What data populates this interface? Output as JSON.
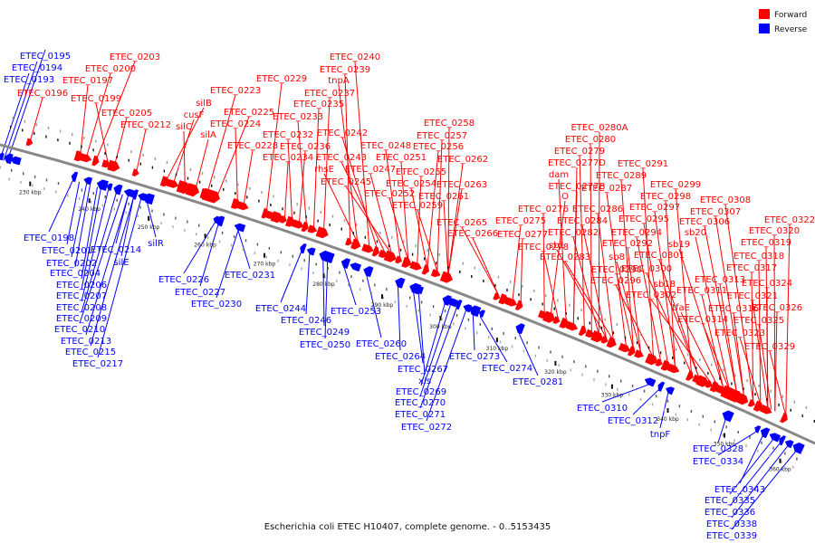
{
  "legend": [
    {
      "label": "Forward",
      "color": "#ff0000"
    },
    {
      "label": "Reverse",
      "color": "#0000ff"
    }
  ],
  "caption": "Escherichia coli ETEC H10407, complete genome. - 0..5153435",
  "colors": {
    "forward": "#ff0000",
    "reverse": "#0000ff",
    "backbone": "#888888"
  },
  "scale_ticks": [
    "230 kbp",
    "240 kbp",
    "250 kbp",
    "260 kbp",
    "270 kbp",
    "280 kbp",
    "290 kbp",
    "300 kbp",
    "310 kbp",
    "320 kbp",
    "330 kbp",
    "340 kbp",
    "350 kbp",
    "360 kbp"
  ],
  "forward_labels": [
    "ETEC_0203",
    "ETEC_0200",
    "ETEC_0197",
    "ETEC_0199",
    "ETEC_0196",
    "ETEC_0205",
    "ETEC_0212",
    "silB",
    "cusF",
    "silC",
    "silA",
    "ETEC_0223",
    "ETEC_0225",
    "ETEC_0224",
    "ETEC_0228",
    "ETEC_0229",
    "ETEC_0240",
    "ETEC_0239",
    "tnpA",
    "ETEC_0237",
    "ETEC_0235",
    "ETEC_0233",
    "ETEC_0232",
    "ETEC_0236",
    "ETEC_0234",
    "ETEC_0242",
    "ETEC_0243",
    "rhsE",
    "ETEC_0245",
    "ETEC_0248",
    "ETEC_0247",
    "ETEC_0251",
    "ETEC_0252",
    "ETEC_0258",
    "ETEC_0257",
    "ETEC_0256",
    "ETEC_0255",
    "ETEC_0254",
    "ETEC_0259",
    "ETEC_0262",
    "ETEC_0263",
    "ETEC_0261",
    "ETEC_0265",
    "ETEC_0266",
    "ETEC_0280A",
    "ETEC_0280",
    "ETEC_0279",
    "ETEC_0277D",
    "dam",
    "ETEC_0277B",
    "O",
    "ETEC_0276",
    "ETEC_0275",
    "ETEC_0277",
    "ETEC_0278",
    "ETEC_0284",
    "ETEC_0282",
    "ETEC_0283",
    "sb1",
    "ETEC_0286",
    "ETEC_0287",
    "ETEC_0289",
    "ETEC_0291",
    "ETEC_0290",
    "ETEC_0292",
    "sb8",
    "ETEC_0296",
    "ETEC_0294",
    "ETEC_0295",
    "ETEC_0297",
    "ETEC_0298",
    "ETEC_0299",
    "ETEC_0301",
    "ETEC_0300",
    "sb18",
    "ETEC_0302",
    "sb19",
    "sb20",
    "ETEC_0306",
    "ETEC_0307",
    "ETEC_0308",
    "ETEC_0311",
    "tfaE",
    "ETEC_0313",
    "ETEC_0314",
    "ETEC_0316",
    "ETEC_0317",
    "ETEC_0318",
    "ETEC_0319",
    "ETEC_0320",
    "ETEC_0322",
    "ETEC_0321",
    "ETEC_0324",
    "ETEC_0326",
    "ETEC_0325",
    "ETEC_0323",
    "ETEC_0329"
  ],
  "reverse_labels": [
    "ETEC_0195",
    "ETEC_0194",
    "ETEC_0193",
    "ETEC_0198",
    "ETEC_0201",
    "ETEC_0202",
    "ETEC_0204",
    "ETEC_0206",
    "ETEC_0207",
    "ETEC_0208",
    "ETEC_0209",
    "ETEC_0210",
    "ETEC_0213",
    "ETEC_0215",
    "ETEC_0217",
    "ETEC_0214",
    "silE",
    "silR",
    "ETEC_0226",
    "ETEC_0227",
    "ETEC_0230",
    "ETEC_0231",
    "ETEC_0244",
    "ETEC_0246",
    "ETEC_0249",
    "ETEC_0250",
    "ETEC_0253",
    "ETEC_0260",
    "ETEC_0264",
    "ETEC_0267",
    "xis",
    "ETEC_0269",
    "ETEC_0270",
    "ETEC_0271",
    "ETEC_0272",
    "ETEC_0273",
    "ETEC_0274",
    "ETEC_0281",
    "ETEC_0310",
    "ETEC_0312",
    "tnpF",
    "ETEC_0328",
    "ETEC_0334",
    "ETEC_0343",
    "ETEC_0335",
    "ETEC_0336",
    "ETEC_0338",
    "ETEC_0339"
  ]
}
